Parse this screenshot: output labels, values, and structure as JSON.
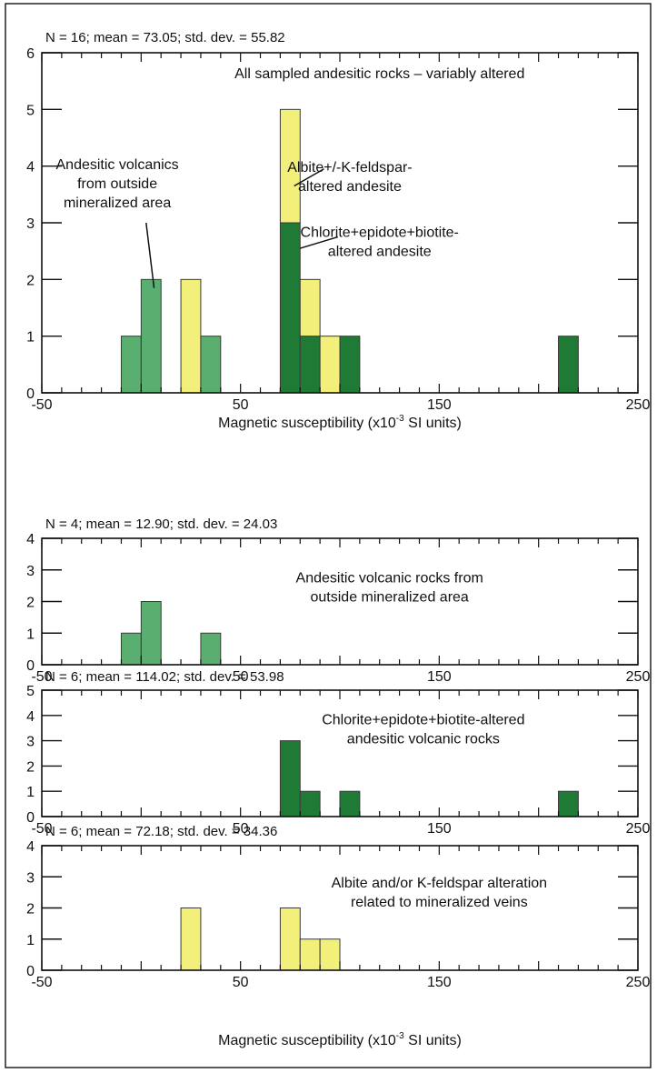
{
  "colors": {
    "medium_green": "#5aae6f",
    "yellow": "#f2ef7a",
    "dark_green": "#1f7a36",
    "bar_edge": "#3a3a3a",
    "frame": "#111111"
  },
  "chart_data": [
    {
      "type": "bar",
      "title": "N = 16; mean = 73.05; std. dev. = 55.82",
      "xlabel": "Magnetic susceptibility (x10",
      "xlabel_sup": "-3",
      "xlabel_tail": " SI units)",
      "xlim": [
        -50,
        250
      ],
      "ylim": [
        0,
        6
      ],
      "x_ticks": [
        "-50",
        "50",
        "150",
        "250"
      ],
      "y_ticks": [
        "0",
        "1",
        "2",
        "3",
        "4",
        "5",
        "6"
      ],
      "bin_width": 10,
      "stacked": true,
      "bars": [
        {
          "x": -10,
          "stack": [
            {
              "color": "medium_green",
              "value": 1
            }
          ]
        },
        {
          "x": 0,
          "stack": [
            {
              "color": "medium_green",
              "value": 2
            }
          ]
        },
        {
          "x": 20,
          "stack": [
            {
              "color": "yellow",
              "value": 2
            }
          ]
        },
        {
          "x": 30,
          "stack": [
            {
              "color": "medium_green",
              "value": 1
            }
          ]
        },
        {
          "x": 70,
          "stack": [
            {
              "color": "dark_green",
              "value": 3
            },
            {
              "color": "yellow",
              "value": 2
            }
          ]
        },
        {
          "x": 80,
          "stack": [
            {
              "color": "dark_green",
              "value": 1
            },
            {
              "color": "yellow",
              "value": 1
            }
          ]
        },
        {
          "x": 90,
          "stack": [
            {
              "color": "yellow",
              "value": 1
            }
          ]
        },
        {
          "x": 100,
          "stack": [
            {
              "color": "dark_green",
              "value": 1
            }
          ]
        },
        {
          "x": 210,
          "stack": [
            {
              "color": "dark_green",
              "value": 1
            }
          ]
        }
      ],
      "annotations": [
        {
          "lines": [
            "All sampled andesitic rocks – variably altered"
          ],
          "x": 120,
          "y": 5.55,
          "anchor": "middle"
        },
        {
          "lines": [
            "Andesitic volcanics",
            "from outside",
            "mineralized area"
          ],
          "x": -12,
          "y": 3.95,
          "anchor": "middle",
          "pointer": [
            2.5,
            3.0,
            6.5,
            1.85
          ]
        },
        {
          "lines": [
            "Albite+/-K-feldspar-",
            "altered andesite"
          ],
          "x": 105,
          "y": 3.9,
          "anchor": "middle",
          "pointer": [
            92,
            3.95,
            77,
            3.65
          ]
        },
        {
          "lines": [
            "Chlorite+epidote+biotite-",
            "altered andesite"
          ],
          "x": 120,
          "y": 2.75,
          "anchor": "middle",
          "pointer": [
            99,
            2.75,
            80,
            2.55
          ]
        }
      ]
    },
    {
      "type": "bar",
      "title": "N = 4; mean = 12.90; std. dev. = 24.03",
      "xlim": [
        -50,
        250
      ],
      "ylim": [
        0,
        4
      ],
      "x_ticks": [
        "-50",
        "50",
        "150",
        "250"
      ],
      "y_ticks": [
        "0",
        "1",
        "2",
        "3",
        "4"
      ],
      "bin_width": 10,
      "bars": [
        {
          "x": -10,
          "stack": [
            {
              "color": "medium_green",
              "value": 1
            }
          ]
        },
        {
          "x": 0,
          "stack": [
            {
              "color": "medium_green",
              "value": 2
            }
          ]
        },
        {
          "x": 30,
          "stack": [
            {
              "color": "medium_green",
              "value": 1
            }
          ]
        }
      ],
      "annotations": [
        {
          "lines": [
            "Andesitic volcanic rocks from",
            "outside mineralized area"
          ],
          "x": 125,
          "y": 2.6,
          "anchor": "middle"
        }
      ]
    },
    {
      "type": "bar",
      "title": "N = 6; mean = 114.02; std. dev. = 53.98",
      "xlim": [
        -50,
        250
      ],
      "ylim": [
        0,
        5
      ],
      "x_ticks": [
        "-50",
        "50",
        "150",
        "250"
      ],
      "y_ticks": [
        "0",
        "1",
        "2",
        "3",
        "4",
        "5"
      ],
      "bin_width": 10,
      "bars": [
        {
          "x": 70,
          "stack": [
            {
              "color": "dark_green",
              "value": 3
            }
          ]
        },
        {
          "x": 80,
          "stack": [
            {
              "color": "dark_green",
              "value": 1
            }
          ]
        },
        {
          "x": 100,
          "stack": [
            {
              "color": "dark_green",
              "value": 1
            }
          ]
        },
        {
          "x": 210,
          "stack": [
            {
              "color": "dark_green",
              "value": 1
            }
          ]
        }
      ],
      "annotations": [
        {
          "lines": [
            "Chlorite+epidote+biotite-altered",
            "andesitic volcanic rocks"
          ],
          "x": 142,
          "y": 3.65,
          "anchor": "middle"
        }
      ]
    },
    {
      "type": "bar",
      "title": "N = 6; mean = 72.18; std. dev. = 34.36",
      "xlabel": "Magnetic susceptibility (x10",
      "xlabel_sup": "-3",
      "xlabel_tail": " SI units)",
      "xlim": [
        -50,
        250
      ],
      "ylim": [
        0,
        4
      ],
      "x_ticks": [
        "-50",
        "50",
        "150",
        "250"
      ],
      "y_ticks": [
        "0",
        "1",
        "2",
        "3",
        "4"
      ],
      "bin_width": 10,
      "bars": [
        {
          "x": 20,
          "stack": [
            {
              "color": "yellow",
              "value": 2
            }
          ]
        },
        {
          "x": 70,
          "stack": [
            {
              "color": "yellow",
              "value": 2
            }
          ]
        },
        {
          "x": 80,
          "stack": [
            {
              "color": "yellow",
              "value": 1
            }
          ]
        },
        {
          "x": 90,
          "stack": [
            {
              "color": "yellow",
              "value": 1
            }
          ]
        }
      ],
      "annotations": [
        {
          "lines": [
            "Albite and/or K-feldspar alteration",
            "related to mineralized veins"
          ],
          "x": 150,
          "y": 2.65,
          "anchor": "middle"
        }
      ]
    }
  ]
}
